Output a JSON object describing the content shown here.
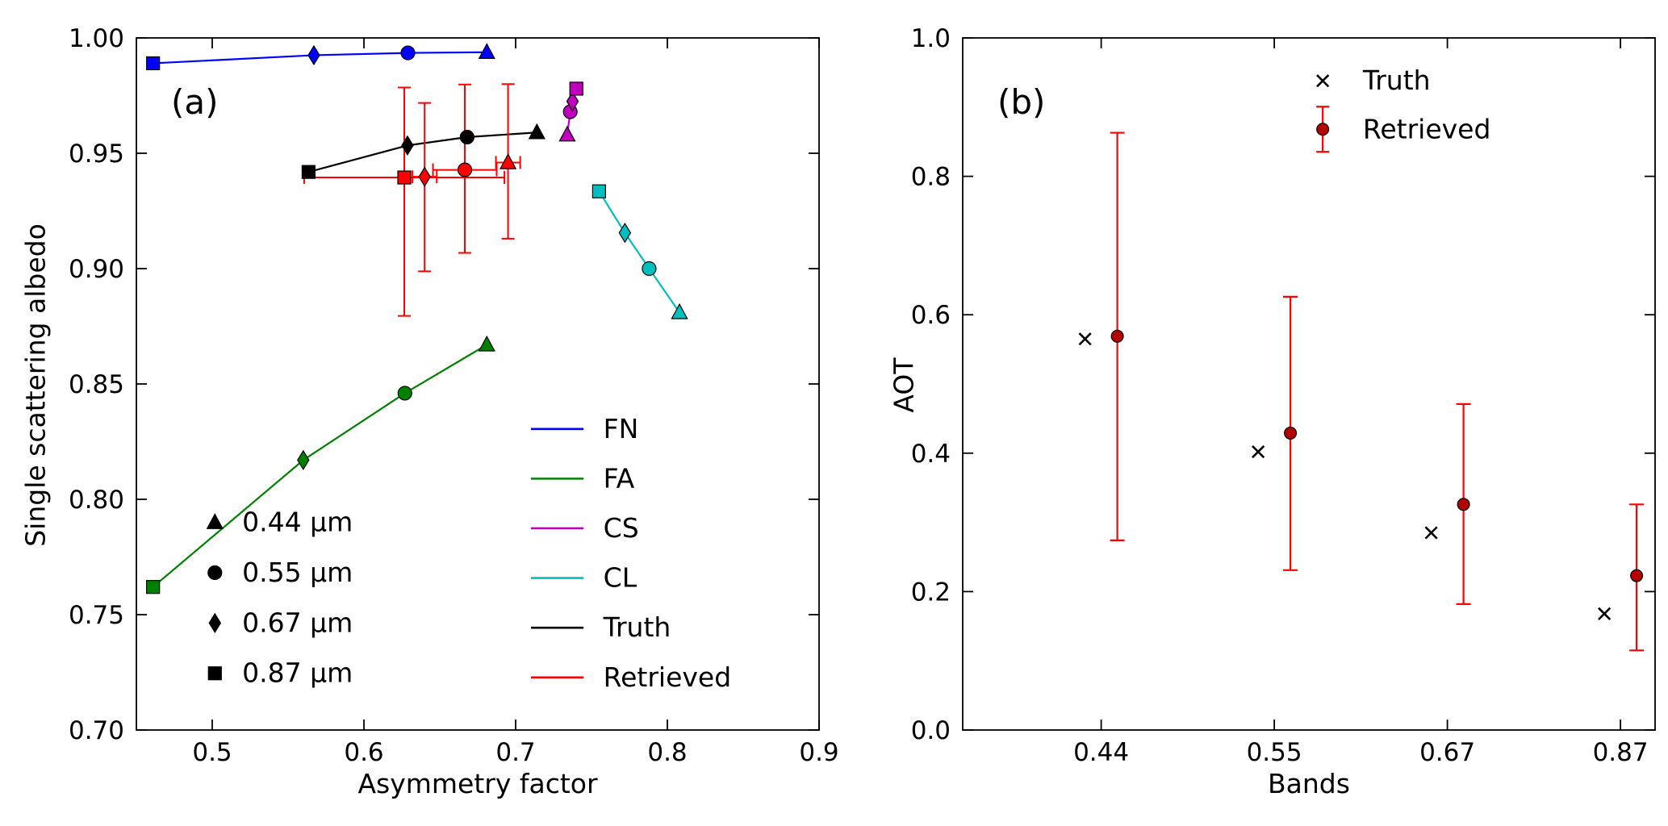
{
  "figure": {
    "panels": [
      {
        "label": "(a)"
      },
      {
        "label": "(b)"
      }
    ]
  },
  "chart_data": [
    {
      "type": "scatter",
      "panel_label": "(a)",
      "xlabel": "Asymmetry factor",
      "ylabel": "Single scattering albedo",
      "xlim": [
        0.45,
        0.9
      ],
      "ylim": [
        0.7,
        1.0
      ],
      "xticks": [
        0.5,
        0.6,
        0.7,
        0.8,
        0.9
      ],
      "xtick_labels": [
        "0.5",
        "0.6",
        "0.7",
        "0.8",
        "0.9"
      ],
      "yticks": [
        0.7,
        0.75,
        0.8,
        0.85,
        0.9,
        0.95,
        1.0
      ],
      "ytick_labels": [
        "0.70",
        "0.75",
        "0.80",
        "0.85",
        "0.90",
        "0.95",
        "1.00"
      ],
      "grid": false,
      "marker_legend": [
        {
          "marker": "triangle",
          "label": "0.44 μm"
        },
        {
          "marker": "circle",
          "label": "0.55 μm"
        },
        {
          "marker": "diamond",
          "label": "0.67 μm"
        },
        {
          "marker": "square",
          "label": "0.87 μm"
        }
      ],
      "line_legend": [
        {
          "label": "FN",
          "color": "#0000ff"
        },
        {
          "label": "FA",
          "color": "#008000"
        },
        {
          "label": "CS",
          "color": "#bf00bf"
        },
        {
          "label": "CL",
          "color": "#00bfbf"
        },
        {
          "label": "Truth",
          "color": "#000000"
        },
        {
          "label": "Retrieved",
          "color": "#ff0000"
        }
      ],
      "series": [
        {
          "name": "FN",
          "color": "#0000ff",
          "line": true,
          "points": [
            {
              "x": 0.461,
              "y": 0.989,
              "marker": "square"
            },
            {
              "x": 0.567,
              "y": 0.9925,
              "marker": "diamond"
            },
            {
              "x": 0.629,
              "y": 0.9935,
              "marker": "circle"
            },
            {
              "x": 0.681,
              "y": 0.9938,
              "marker": "triangle"
            }
          ]
        },
        {
          "name": "FA",
          "color": "#008000",
          "line": true,
          "points": [
            {
              "x": 0.461,
              "y": 0.762,
              "marker": "square"
            },
            {
              "x": 0.56,
              "y": 0.817,
              "marker": "diamond"
            },
            {
              "x": 0.627,
              "y": 0.846,
              "marker": "circle"
            },
            {
              "x": 0.681,
              "y": 0.867,
              "marker": "triangle"
            }
          ]
        },
        {
          "name": "CS",
          "color": "#bf00bf",
          "line": true,
          "points": [
            {
              "x": 0.734,
              "y": 0.958,
              "marker": "triangle"
            },
            {
              "x": 0.736,
              "y": 0.968,
              "marker": "circle"
            },
            {
              "x": 0.7375,
              "y": 0.9725,
              "marker": "diamond"
            },
            {
              "x": 0.74,
              "y": 0.978,
              "marker": "square"
            }
          ]
        },
        {
          "name": "CL",
          "color": "#00bfbf",
          "line": true,
          "points": [
            {
              "x": 0.755,
              "y": 0.9335,
              "marker": "square"
            },
            {
              "x": 0.772,
              "y": 0.9155,
              "marker": "diamond"
            },
            {
              "x": 0.788,
              "y": 0.9,
              "marker": "circle"
            },
            {
              "x": 0.808,
              "y": 0.881,
              "marker": "triangle"
            }
          ]
        },
        {
          "name": "Truth",
          "color": "#000000",
          "line": true,
          "points": [
            {
              "x": 0.5635,
              "y": 0.9419,
              "marker": "square"
            },
            {
              "x": 0.6287,
              "y": 0.9534,
              "marker": "diamond"
            },
            {
              "x": 0.668,
              "y": 0.957,
              "marker": "circle"
            },
            {
              "x": 0.714,
              "y": 0.959,
              "marker": "triangle"
            }
          ]
        },
        {
          "name": "Retrieved",
          "color": "#ff0000",
          "line": false,
          "points": [
            {
              "x": 0.6266,
              "y": 0.9395,
              "marker": "square",
              "xerr": 0.066,
              "yerr_lo": 0.06,
              "yerr_hi": 0.039
            },
            {
              "x": 0.64,
              "y": 0.9398,
              "marker": "diamond",
              "xerr": 0.008,
              "yerr_lo": 0.041,
              "yerr_hi": 0.032
            },
            {
              "x": 0.6665,
              "y": 0.9428,
              "marker": "circle",
              "xerr": 0.021,
              "yerr_lo": 0.036,
              "yerr_hi": 0.037
            },
            {
              "x": 0.695,
              "y": 0.946,
              "marker": "triangle",
              "xerr": 0.008,
              "yerr_lo": 0.033,
              "yerr_hi": 0.034
            }
          ]
        }
      ]
    },
    {
      "type": "scatter",
      "panel_label": "(b)",
      "xlabel": "Bands",
      "ylabel": "AOT",
      "categories": [
        "0.44",
        "0.55",
        "0.67",
        "0.87"
      ],
      "ylim": [
        0.0,
        1.0
      ],
      "yticks": [
        0.0,
        0.2,
        0.4,
        0.6,
        0.8,
        1.0
      ],
      "ytick_labels": [
        "0.0",
        "0.2",
        "0.4",
        "0.6",
        "0.8",
        "1.0"
      ],
      "grid": false,
      "legend": [
        {
          "label": "Truth"
        },
        {
          "label": "Retrieved"
        }
      ],
      "series": [
        {
          "name": "Truth",
          "marker": "x",
          "color": "#000000",
          "values": [
            0.565,
            0.402,
            0.285,
            0.168
          ]
        },
        {
          "name": "Retrieved",
          "marker": "circle",
          "color": "#ff0000",
          "fill": "#b30000",
          "values": [
            0.569,
            0.429,
            0.326,
            0.223
          ],
          "err_lo": [
            0.274,
            0.231,
            0.182,
            0.115
          ],
          "err_hi": [
            0.863,
            0.626,
            0.471,
            0.326
          ]
        }
      ]
    }
  ]
}
